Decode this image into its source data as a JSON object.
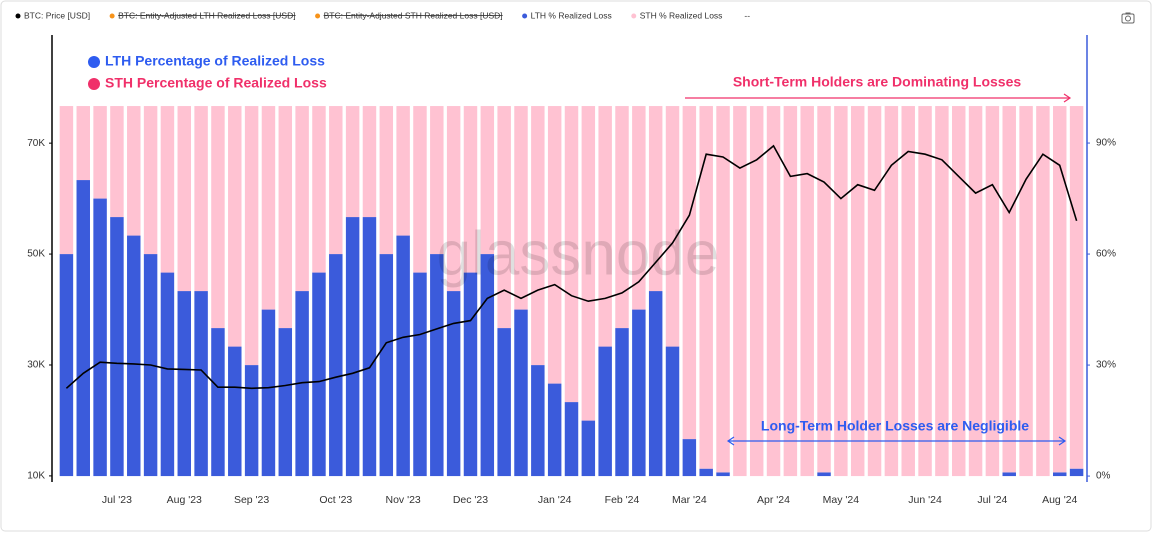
{
  "chart_data": {
    "type": "bar-line",
    "categories": [
      null,
      null,
      null,
      "Jul '23",
      null,
      null,
      null,
      "Aug '23",
      null,
      null,
      null,
      "Sep '23",
      null,
      null,
      null,
      null,
      "Oct '23",
      null,
      null,
      null,
      "Nov '23",
      null,
      null,
      null,
      "Dec '23",
      null,
      null,
      null,
      null,
      "Jan '24",
      null,
      null,
      null,
      "Feb '24",
      null,
      null,
      null,
      "Mar '24",
      null,
      null,
      null,
      null,
      "Apr '24",
      null,
      null,
      null,
      "May '24",
      null,
      null,
      null,
      null,
      "Jun '24",
      null,
      null,
      null,
      "Jul '24",
      null,
      null,
      null,
      "Aug '24",
      null
    ],
    "series": [
      {
        "name": "BTC: Price [USD]",
        "color": "#000000",
        "kind": "line",
        "axis": "y",
        "values": [
          25800,
          28500,
          30500,
          30300,
          30200,
          30000,
          29300,
          29200,
          29100,
          26000,
          26000,
          25800,
          25900,
          26300,
          26800,
          27000,
          27800,
          28500,
          29500,
          34000,
          35000,
          35500,
          36500,
          37500,
          38000,
          42000,
          43500,
          42000,
          43500,
          44500,
          42500,
          41500,
          42000,
          43000,
          45000,
          48500,
          52000,
          57000,
          68000,
          67500,
          65500,
          67000,
          69500,
          64000,
          64500,
          63000,
          60000,
          62500,
          61500,
          66000,
          68500,
          68000,
          67000,
          64000,
          61000,
          62500,
          57500,
          63500,
          68000,
          66000,
          56000
        ]
      },
      {
        "name": "LTH % Realized Loss",
        "color": "#3b5bdb",
        "kind": "bar",
        "axis": "y2",
        "values": [
          60,
          80,
          75,
          70,
          65,
          60,
          55,
          50,
          50,
          40,
          35,
          30,
          45,
          40,
          50,
          55,
          60,
          70,
          70,
          60,
          65,
          55,
          60,
          50,
          55,
          60,
          40,
          45,
          30,
          25,
          20,
          15,
          35,
          40,
          45,
          50,
          35,
          10,
          2,
          1,
          0,
          0,
          0,
          0,
          0,
          1,
          0,
          0,
          0,
          0,
          0,
          0,
          0,
          0,
          0,
          0,
          1,
          0,
          0,
          1,
          2
        ]
      },
      {
        "name": "STH % Realized Loss",
        "color": "#ffc2d2",
        "kind": "bar",
        "axis": "y2",
        "values": [
          40,
          20,
          25,
          30,
          35,
          40,
          45,
          50,
          50,
          60,
          65,
          70,
          55,
          60,
          50,
          45,
          40,
          30,
          30,
          40,
          35,
          45,
          40,
          50,
          45,
          40,
          60,
          55,
          70,
          75,
          80,
          85,
          65,
          60,
          55,
          50,
          65,
          90,
          98,
          99,
          100,
          100,
          100,
          100,
          100,
          99,
          100,
          100,
          100,
          100,
          100,
          100,
          100,
          100,
          100,
          100,
          99,
          100,
          100,
          99,
          98
        ]
      }
    ],
    "hidden_series": [
      {
        "name": "BTC: Entity-Adjusted LTH Realized Loss [USD]",
        "color": "#f7931a"
      },
      {
        "name": "BTC: Entity-Adjusted STH Realized Loss [USD]",
        "color": "#f7931a"
      }
    ],
    "legend_more": "--",
    "ylim": [
      8900,
      89500
    ],
    "yticks": [
      {
        "value": 10000,
        "label": "10K"
      },
      {
        "value": 30000,
        "label": "30K"
      },
      {
        "value": 50000,
        "label": "50K"
      },
      {
        "value": 70000,
        "label": "70K"
      }
    ],
    "y2lim": [
      -1.6,
      119.2
    ],
    "y2ticks": [
      {
        "value": 0,
        "label": "0%"
      },
      {
        "value": 30,
        "label": "30%"
      },
      {
        "value": 60,
        "label": "60%"
      },
      {
        "value": 90,
        "label": "90%"
      }
    ],
    "annotations": {
      "lth_label": "LTH Percentage of Realized Loss",
      "sth_label": "STH Percentage of Realized Loss",
      "sth_note": "Short-Term Holders are Dominating Losses",
      "lth_note": "Long-Term Holder Losses are Negligible"
    },
    "watermark": "glassnode"
  }
}
